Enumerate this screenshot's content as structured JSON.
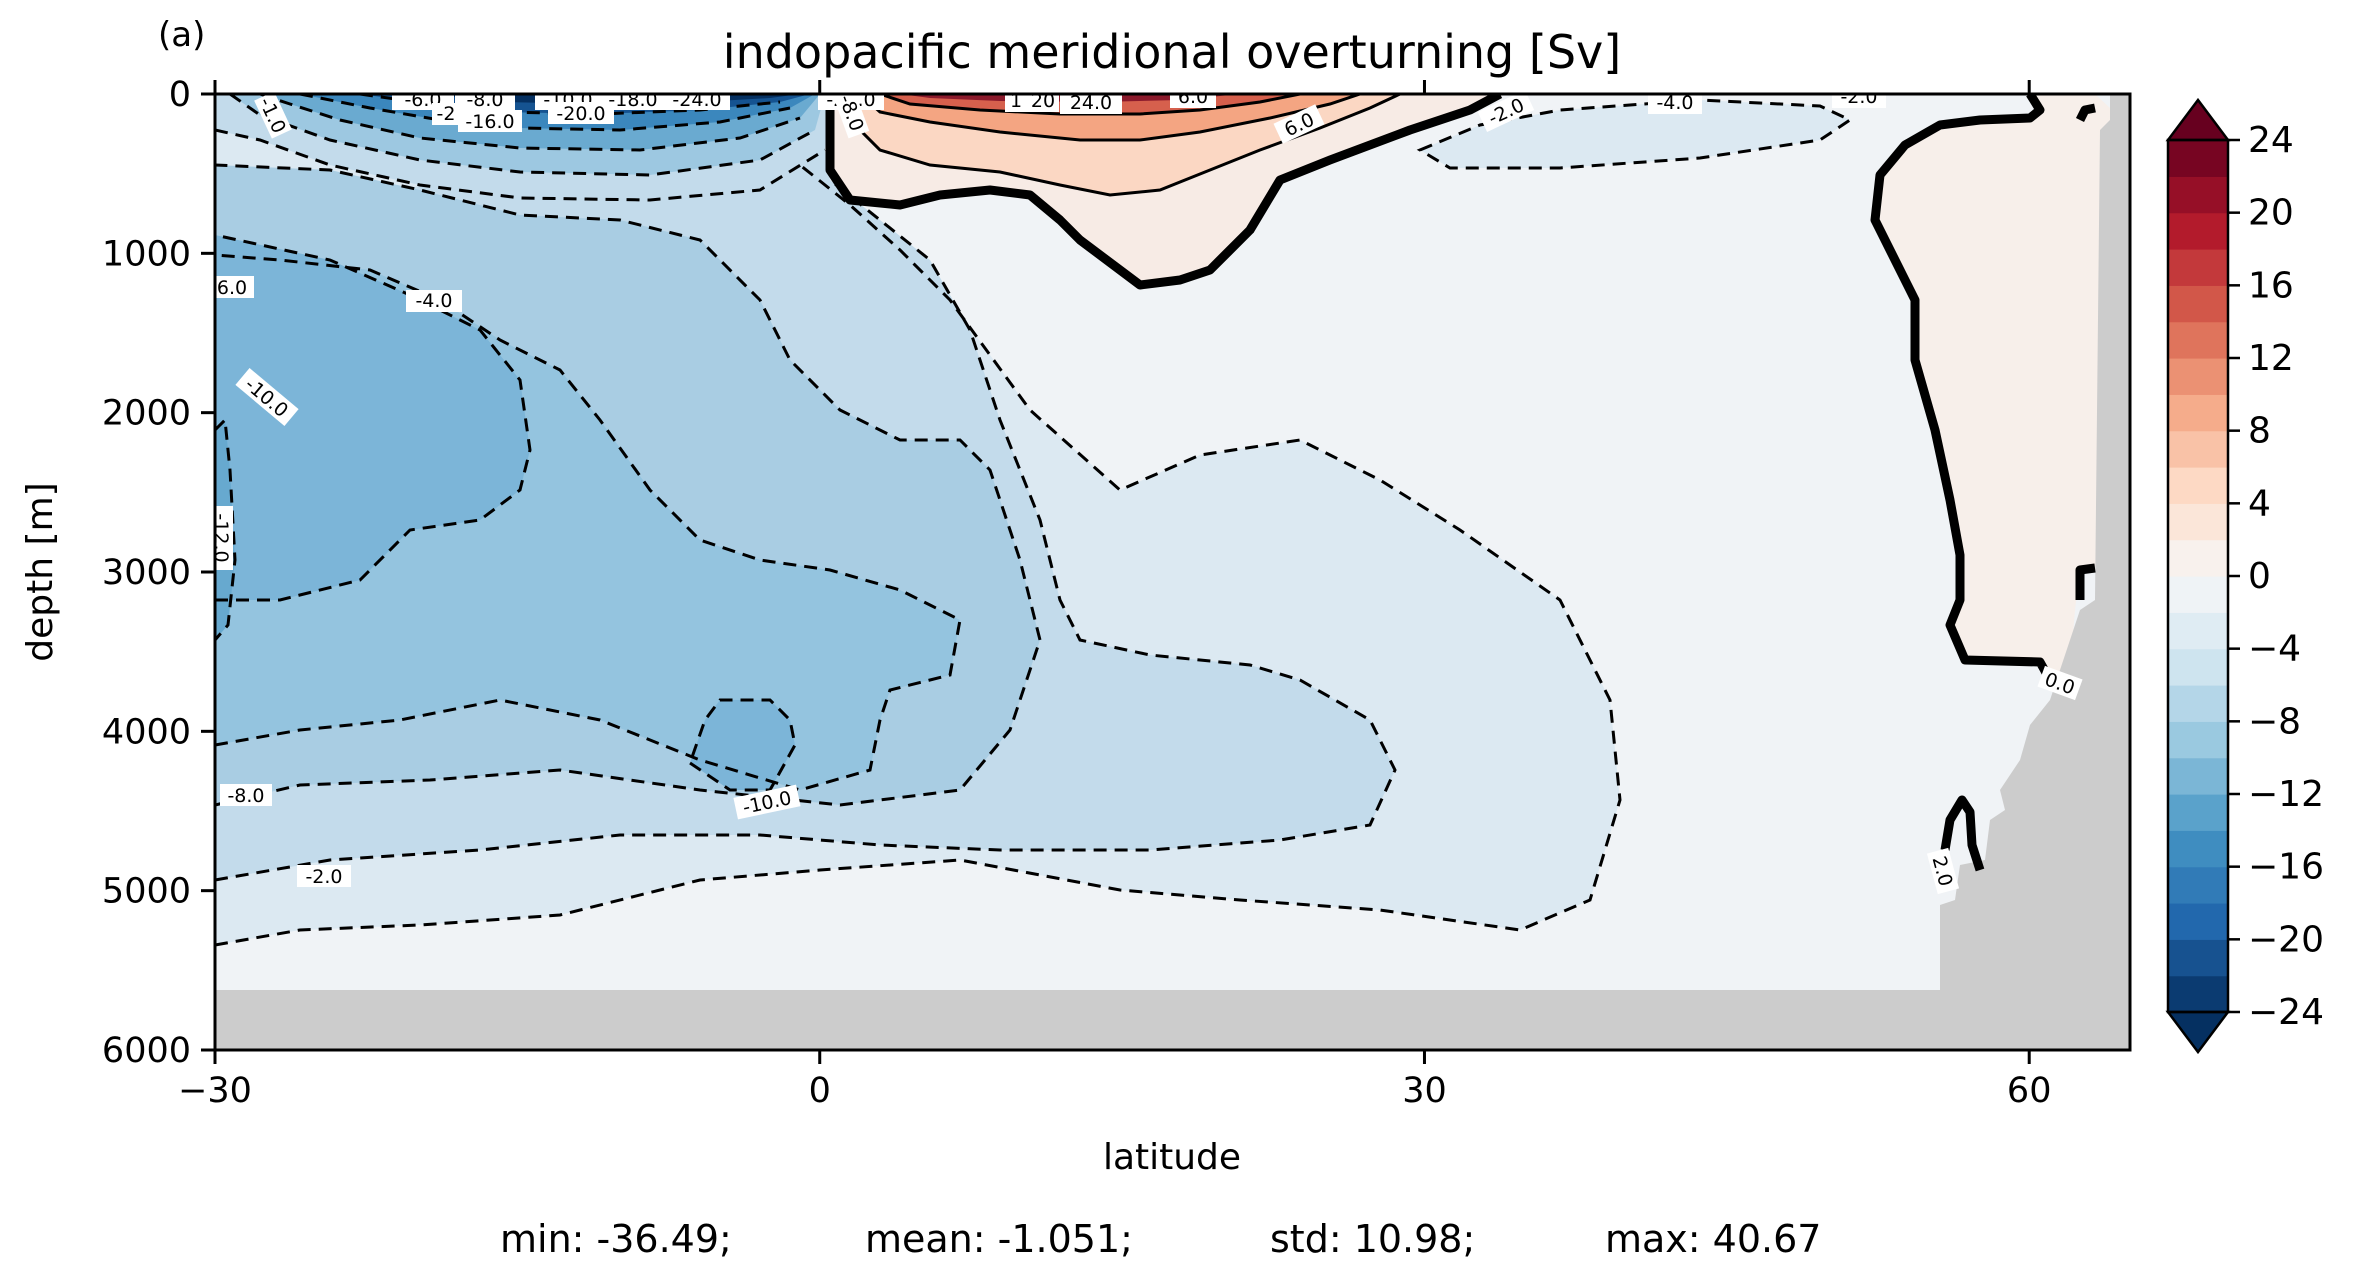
{
  "chart_data": {
    "type": "contour",
    "panel_label": "(a)",
    "title": "indopacific meridional overturning [Sv]",
    "xlabel": "latitude",
    "ylabel": "depth [m]",
    "xlim": [
      -30,
      65
    ],
    "ylim": [
      6000,
      0
    ],
    "xticks": [
      -30,
      0,
      30,
      60
    ],
    "xtick_labels": [
      "−30",
      "0",
      "30",
      "60"
    ],
    "yticks": [
      0,
      1000,
      2000,
      3000,
      4000,
      5000,
      6000
    ],
    "ytick_labels": [
      "0",
      "1000",
      "2000",
      "3000",
      "4000",
      "5000",
      "6000"
    ],
    "colorbar": {
      "cmap": "RdBu_r",
      "vmin": -24,
      "vmax": 24,
      "step": 2,
      "extend": "both",
      "ticks": [
        24,
        20,
        16,
        12,
        8,
        4,
        0,
        -4,
        -8,
        -12,
        -16,
        -20,
        -24
      ],
      "tick_labels": [
        "24",
        "20",
        "16",
        "12",
        "8",
        "4",
        "0",
        "−4",
        "−8",
        "−12",
        "−16",
        "−20",
        "−24"
      ]
    },
    "contour_labels": [
      "-6.0",
      "-8.0",
      "-2",
      "-16.0",
      "-10.0",
      "-18.0",
      "-24.0",
      "-20.0",
      "-22.0",
      "-8.0",
      "1",
      "20",
      "24.0",
      "6.0",
      "6.0",
      "-2.0",
      "-4.0",
      "-2.0",
      "-1.0",
      "6.0",
      "-4.0",
      "-10.0",
      "-12.0",
      "-8.0",
      "-2.0",
      "-10.0",
      "0.0",
      "2.0"
    ],
    "stats": {
      "min": "min: -36.49;",
      "mean": "mean: -1.051;",
      "std": "std: 10.98;",
      "max": "max: 40.67"
    },
    "colors": {
      "land": "#cccccc"
    }
  }
}
